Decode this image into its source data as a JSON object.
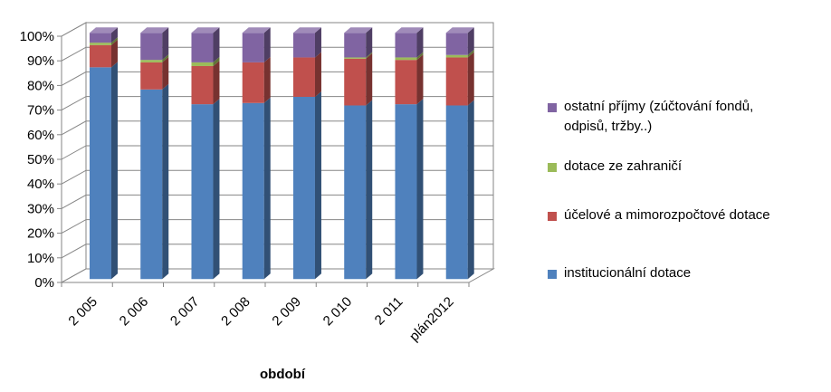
{
  "chart_data": {
    "type": "bar",
    "stacked": true,
    "normalized_percent": true,
    "three_d": true,
    "categories": [
      "2 005",
      "2 006",
      "2 007",
      "2 008",
      "2 009",
      "2 010",
      "2 011",
      "plán2012"
    ],
    "series": [
      {
        "name": "institucionální dotace",
        "color": "#4F81BD",
        "values": [
          86,
          77,
          71,
          71.5,
          74,
          70.5,
          71,
          70.5
        ]
      },
      {
        "name": "účelové a mimorozpočtové dotace",
        "color": "#C0504D",
        "values": [
          9,
          11,
          15.5,
          16.5,
          16,
          19,
          18,
          19.5
        ]
      },
      {
        "name": "dotace ze zahraničí",
        "color": "#9BBB59",
        "values": [
          1,
          1,
          1.5,
          0,
          0,
          0.5,
          1,
          1
        ]
      },
      {
        "name": "ostatní příjmy (zúčtování fondů, odpisů, tržby..)",
        "color": "#8064A2",
        "values": [
          4,
          11,
          12,
          12,
          10,
          10,
          10,
          9
        ]
      }
    ],
    "y_tick_labels": [
      "0%",
      "10%",
      "20%",
      "30%",
      "40%",
      "50%",
      "60%",
      "70%",
      "80%",
      "90%",
      "100%"
    ],
    "ylim": [
      0,
      100
    ],
    "xlabel": "období",
    "ylabel": "",
    "title": "",
    "grid": "horizontal",
    "legend_position": "right"
  },
  "legend": {
    "items": [
      {
        "label_lines": [
          "ostatní příjmy (zúčtování fondů,",
          "odpisů, tržby..)"
        ],
        "color": "#8064A2"
      },
      {
        "label_lines": [
          "dotace ze zahraničí"
        ],
        "color": "#9BBB59"
      },
      {
        "label_lines": [
          "účelové a mimorozpočtové dotace"
        ],
        "color": "#C0504D"
      },
      {
        "label_lines": [
          "institucionální dotace"
        ],
        "color": "#4F81BD"
      }
    ]
  }
}
